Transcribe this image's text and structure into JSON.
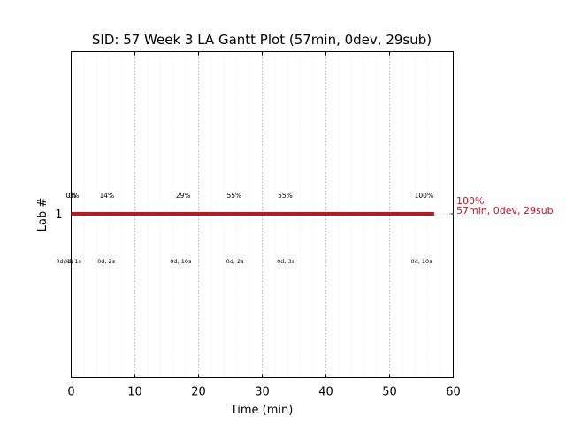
{
  "chart_data": {
    "type": "gantt",
    "title": "SID: 57 Week 3 LA Gantt Plot (57min, 0dev, 29sub)",
    "xlabel": "Time (min)",
    "ylabel": "Lab #",
    "xlim": [
      0,
      60
    ],
    "x_ticks": [
      "0",
      "10",
      "20",
      "30",
      "40",
      "50",
      "60"
    ],
    "y_ticks": [
      "1"
    ],
    "grid": "vertical dotted, major every 10 min, minor every 2 min",
    "bars": [
      {
        "lab": "1",
        "start": 0,
        "end": 57,
        "color": "#c0171f"
      }
    ],
    "progress_markers": [
      {
        "t": 0.0,
        "label": "0%"
      },
      {
        "t": 0.4,
        "label": "0%"
      },
      {
        "t": 5.6,
        "label": "14%"
      },
      {
        "t": 17.6,
        "label": "29%"
      },
      {
        "t": 25.6,
        "label": "55%"
      },
      {
        "t": 33.6,
        "label": "55%"
      },
      {
        "t": 55.4,
        "label": "100%"
      }
    ],
    "duration_markers": [
      {
        "t": -1.0,
        "label": "0d, 1s"
      },
      {
        "t": 0.2,
        "label": "0d, 1s"
      },
      {
        "t": 5.5,
        "label": "0d, 2s"
      },
      {
        "t": 17.2,
        "label": "0d, 10s"
      },
      {
        "t": 25.7,
        "label": "0d, 2s"
      },
      {
        "t": 33.7,
        "label": "0d, 3s"
      },
      {
        "t": 55.0,
        "label": "0d, 10s"
      }
    ],
    "end_annotation": {
      "line1": "100%",
      "line2": "57min, 0dev, 29sub",
      "color": "#c0171f"
    }
  }
}
